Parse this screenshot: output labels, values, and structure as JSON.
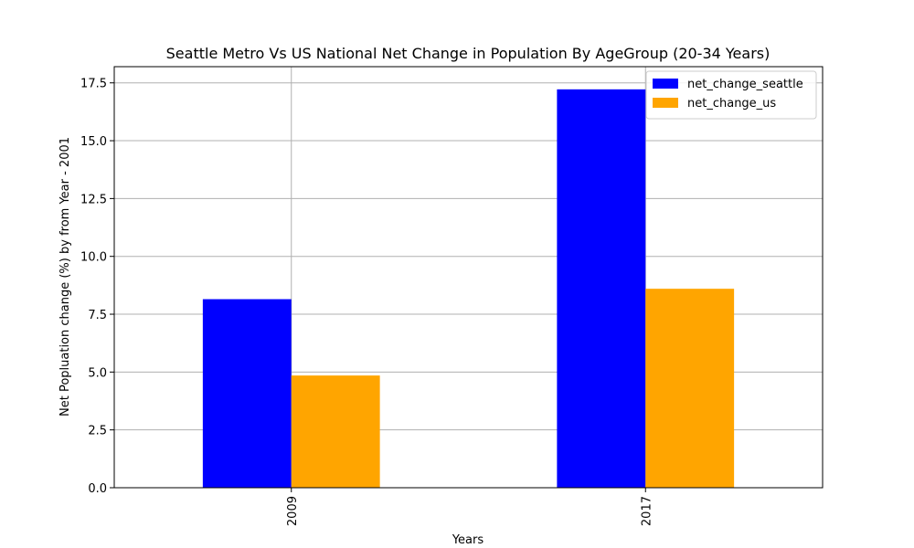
{
  "chart_data": {
    "type": "bar",
    "title": "Seattle Metro Vs US National Net Change in Population By AgeGroup (20-34 Years)",
    "xlabel": "Years",
    "ylabel": "Net Popluation change (%) by from Year - 2001",
    "categories": [
      "2009",
      "2017"
    ],
    "series": [
      {
        "name": "net_change_seattle",
        "values": [
          8.15,
          17.22
        ],
        "color": "#0000ff"
      },
      {
        "name": "net_change_us",
        "values": [
          4.85,
          8.6
        ],
        "color": "#ffa500"
      }
    ],
    "ylim": [
      0,
      18.2
    ],
    "yticks": [
      0.0,
      2.5,
      5.0,
      7.5,
      10.0,
      12.5,
      15.0,
      17.5
    ],
    "ytick_labels": [
      "0.0",
      "2.5",
      "5.0",
      "7.5",
      "10.0",
      "12.5",
      "15.0",
      "17.5"
    ],
    "grid": true,
    "legend_position": "top-right"
  }
}
